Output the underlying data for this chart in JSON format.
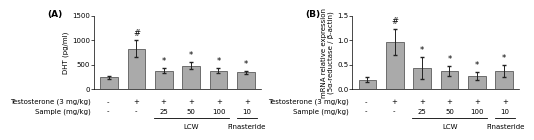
{
  "panel_A": {
    "title": "(A)",
    "ylabel": "DHT (pg/ml)",
    "bar_values": [
      250,
      830,
      380,
      480,
      380,
      350
    ],
    "bar_errors": [
      30,
      170,
      50,
      70,
      55,
      30
    ],
    "bar_color": "#aaaaaa",
    "ylim": [
      0,
      1500
    ],
    "yticks": [
      0,
      500,
      1000,
      1500
    ],
    "annotations": [
      {
        "bar": 1,
        "text": "#",
        "fontsize": 6
      },
      {
        "bar": 2,
        "text": "*",
        "fontsize": 6
      },
      {
        "bar": 3,
        "text": "*",
        "fontsize": 6
      },
      {
        "bar": 4,
        "text": "*",
        "fontsize": 6
      },
      {
        "bar": 5,
        "text": "*",
        "fontsize": 6
      }
    ],
    "xticklabels_top": [
      "-",
      "+",
      "+",
      "+",
      "+",
      "+"
    ],
    "xticklabels_mid": [
      "-",
      "-",
      "25",
      "50",
      "100",
      "10"
    ],
    "row_labels": [
      "Testosterone (3 mg/kg)",
      "Sample (mg/kg)"
    ]
  },
  "panel_B": {
    "title": "(B)",
    "ylabel": "mRNA relative expression\n(5α-reductase / β-actin)",
    "bar_values": [
      0.2,
      0.97,
      0.44,
      0.37,
      0.27,
      0.37
    ],
    "bar_errors": [
      0.05,
      0.27,
      0.22,
      0.1,
      0.08,
      0.12
    ],
    "bar_color": "#aaaaaa",
    "ylim": [
      0,
      1.5
    ],
    "yticks": [
      0.0,
      0.5,
      1.0,
      1.5
    ],
    "annotations": [
      {
        "bar": 1,
        "text": "#",
        "fontsize": 6
      },
      {
        "bar": 2,
        "text": "*",
        "fontsize": 6
      },
      {
        "bar": 3,
        "text": "*",
        "fontsize": 6
      },
      {
        "bar": 4,
        "text": "*",
        "fontsize": 6
      },
      {
        "bar": 5,
        "text": "*",
        "fontsize": 6
      }
    ],
    "xticklabels_top": [
      "-",
      "+",
      "+",
      "+",
      "+",
      "+"
    ],
    "xticklabels_mid": [
      "-",
      "-",
      "25",
      "50",
      "100",
      "10"
    ],
    "row_labels": [
      "Testosterone (3 mg/kg)",
      "Sample (mg/kg)"
    ]
  },
  "figure_bg": "#ffffff",
  "bar_edge_color": "#444444",
  "error_color": "#222222",
  "label_fontsize": 5.0,
  "tick_fontsize": 5.0,
  "title_fontsize": 6.5,
  "annotation_fontsize": 6.5,
  "group_label_fontsize": 5.0
}
